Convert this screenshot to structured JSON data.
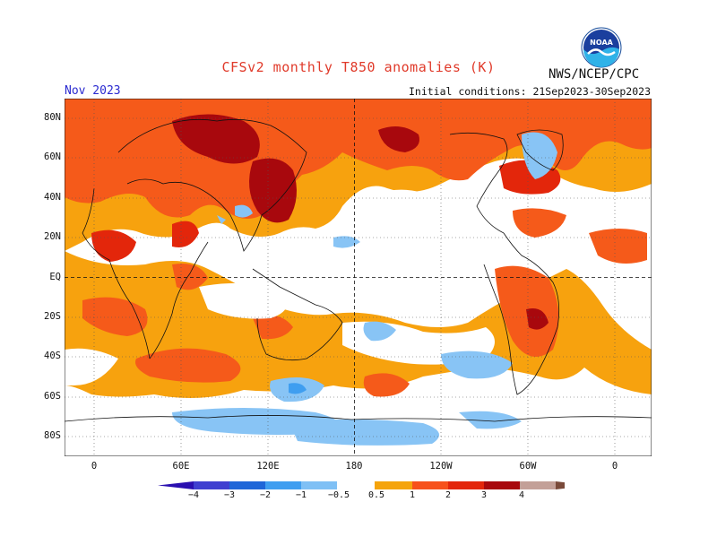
{
  "header": {
    "title": "CFSv2 monthly T850 anomalies (K)",
    "month": "Nov 2023",
    "agency": "NWS/NCEP/CPC",
    "initial_conditions": "Initial conditions: 21Sep2023-30Sep2023"
  },
  "logo": {
    "icon": "noaa-logo",
    "text": "NOAA"
  },
  "map": {
    "projection": "cylindrical equidistant",
    "lon_range": [
      -20,
      360
    ],
    "lat_range": [
      -90,
      90
    ],
    "lat_labels": [
      "80N",
      "60N",
      "40N",
      "20N",
      "EQ",
      "20S",
      "40S",
      "60S",
      "80S"
    ],
    "lat_values": [
      80,
      60,
      40,
      20,
      0,
      -20,
      -40,
      -60,
      -80
    ],
    "lon_labels": [
      "0",
      "60E",
      "120E",
      "180",
      "120W",
      "60W",
      "0"
    ],
    "lon_values": [
      0,
      60,
      120,
      180,
      240,
      300,
      360
    ],
    "grid": "dotted",
    "center_lines": "dashed at equator and 180"
  },
  "colorbar": {
    "labels": [
      "−4",
      "−3",
      "−2",
      "−1",
      "−0.5",
      "0.5",
      "1",
      "2",
      "3",
      "4"
    ],
    "colors": [
      "#2a0fb0",
      "#3f3fd0",
      "#1f66d8",
      "#3f9ef0",
      "#7fc0f5",
      "#ffffff",
      "#f5a40c",
      "#f7511b",
      "#e3260b",
      "#a8080d",
      "#c3a098",
      "#7a4a3a"
    ],
    "extend": "both"
  },
  "palette": {
    "light_blue": "#88c4f5",
    "blue": "#3f9ef0",
    "orange": "#f7a20e",
    "red_orange": "#f55a1a",
    "red": "#e3260b",
    "dark_red": "#a8080d"
  }
}
